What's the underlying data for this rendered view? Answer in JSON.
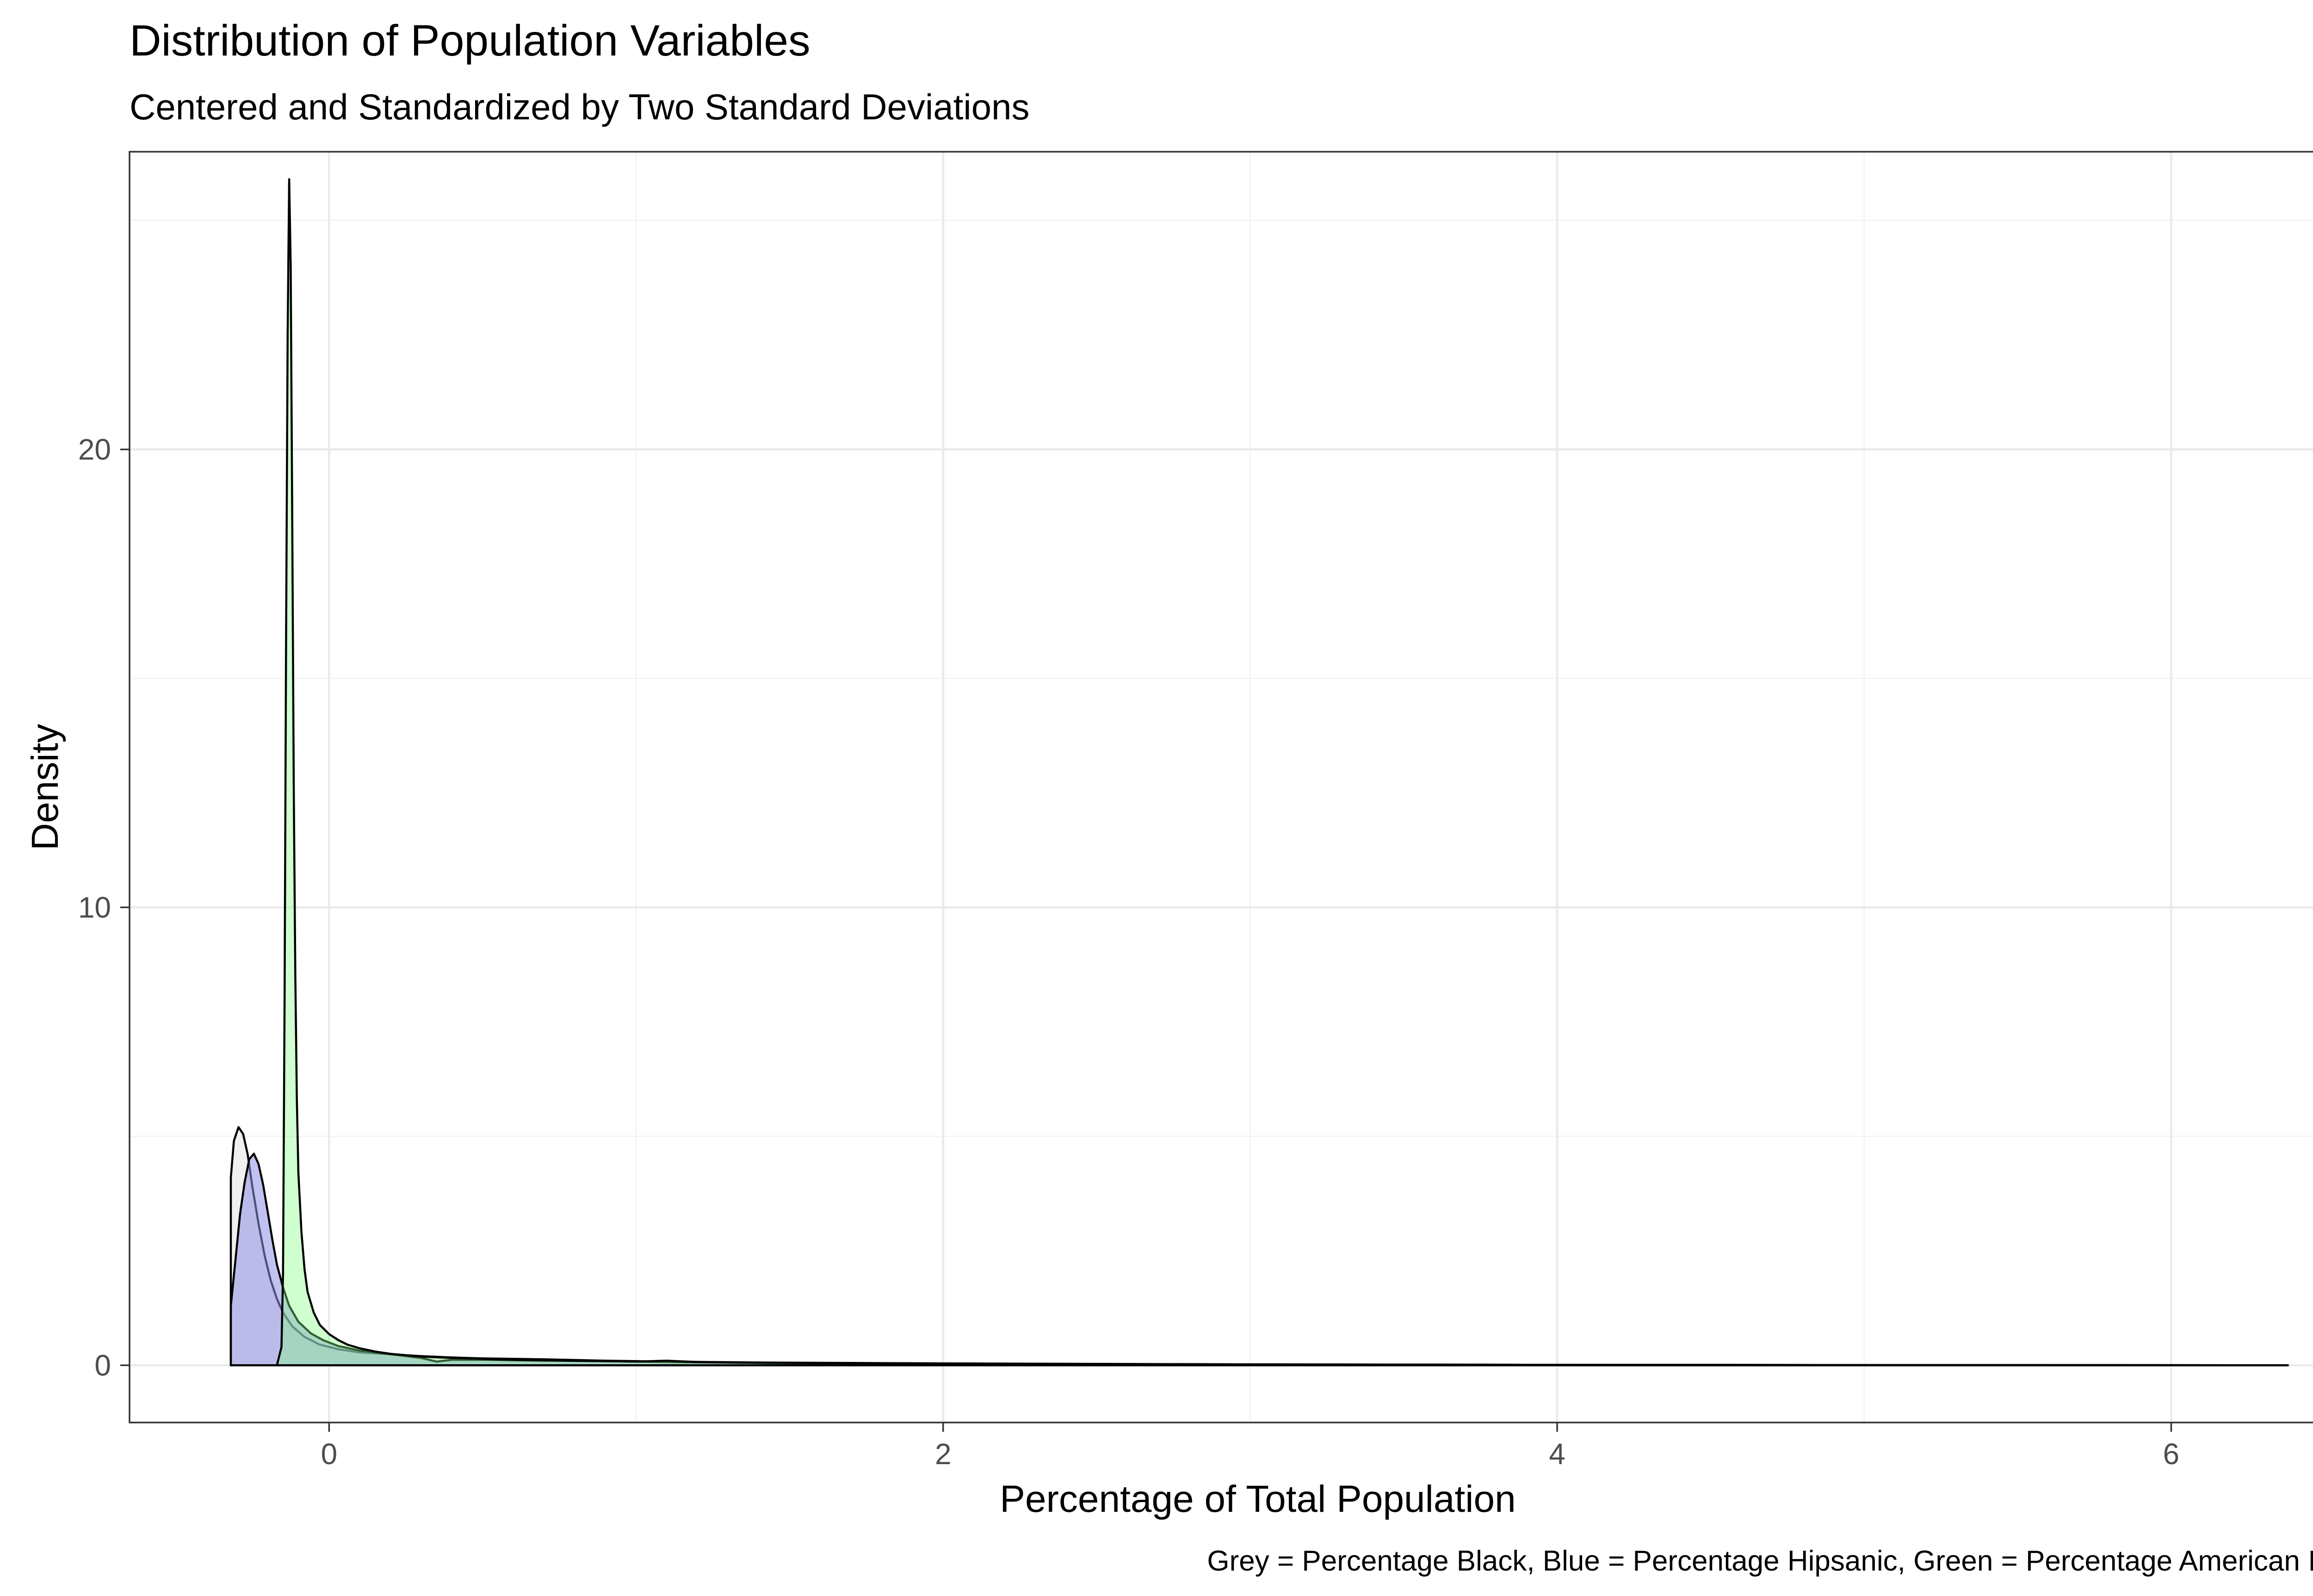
{
  "chart_data": {
    "type": "area",
    "title": "Distribution of Population Variables",
    "subtitle": "Centered and Standardized by Two Standard Deviations",
    "xlabel": "Percentage of Total Population",
    "ylabel": "Density",
    "caption": "Grey = Percentage Black, Blue = Percentage Hipsanic, Green = Percentage American Indian",
    "xlim": [
      -0.65,
      6.7
    ],
    "ylim": [
      -1.25,
      26.5
    ],
    "x_ticks": [
      0,
      2,
      4,
      6
    ],
    "y_ticks": [
      0,
      10,
      20
    ],
    "grid": true,
    "legend": "none",
    "series": [
      {
        "fill": "#EBEBEB",
        "fill_opacity": 0.75,
        "points": [
          [
            -0.32,
            0
          ],
          [
            -0.32,
            4.1
          ],
          [
            -0.31,
            4.9
          ],
          [
            -0.295,
            5.2
          ],
          [
            -0.28,
            5.05
          ],
          [
            -0.265,
            4.6
          ],
          [
            -0.25,
            3.9
          ],
          [
            -0.23,
            3.1
          ],
          [
            -0.21,
            2.4
          ],
          [
            -0.19,
            1.85
          ],
          [
            -0.17,
            1.45
          ],
          [
            -0.15,
            1.15
          ],
          [
            -0.12,
            0.85
          ],
          [
            -0.08,
            0.62
          ],
          [
            -0.03,
            0.45
          ],
          [
            0.03,
            0.35
          ],
          [
            0.1,
            0.28
          ],
          [
            0.2,
            0.24
          ],
          [
            0.3,
            0.2
          ],
          [
            0.4,
            0.17
          ],
          [
            0.5,
            0.15
          ],
          [
            0.7,
            0.13
          ],
          [
            0.9,
            0.1
          ],
          [
            1.1,
            0.08
          ],
          [
            1.4,
            0.06
          ],
          [
            1.7,
            0.05
          ],
          [
            2.0,
            0.04
          ],
          [
            2.5,
            0.03
          ],
          [
            3.0,
            0.02
          ],
          [
            4.0,
            0.01
          ],
          [
            5.0,
            0.005
          ],
          [
            6.0,
            0.002
          ],
          [
            6.38,
            0.0
          ]
        ]
      },
      {
        "fill": "#8F8FE6",
        "fill_opacity": 0.55,
        "points": [
          [
            -0.32,
            0
          ],
          [
            -0.32,
            1.3
          ],
          [
            -0.305,
            2.3
          ],
          [
            -0.29,
            3.3
          ],
          [
            -0.275,
            4.0
          ],
          [
            -0.26,
            4.5
          ],
          [
            -0.245,
            4.62
          ],
          [
            -0.23,
            4.4
          ],
          [
            -0.215,
            3.95
          ],
          [
            -0.2,
            3.35
          ],
          [
            -0.185,
            2.75
          ],
          [
            -0.17,
            2.2
          ],
          [
            -0.15,
            1.7
          ],
          [
            -0.13,
            1.3
          ],
          [
            -0.1,
            0.95
          ],
          [
            -0.06,
            0.7
          ],
          [
            -0.02,
            0.55
          ],
          [
            0.03,
            0.42
          ],
          [
            0.1,
            0.32
          ],
          [
            0.2,
            0.24
          ],
          [
            0.3,
            0.16
          ],
          [
            0.35,
            0.08
          ],
          [
            0.4,
            0.12
          ],
          [
            0.5,
            0.12
          ],
          [
            0.7,
            0.1
          ],
          [
            0.9,
            0.09
          ],
          [
            1.1,
            0.07
          ],
          [
            1.4,
            0.05
          ],
          [
            1.8,
            0.04
          ],
          [
            2.2,
            0.03
          ],
          [
            3.0,
            0.02
          ],
          [
            4.0,
            0.01
          ],
          [
            5.0,
            0.005
          ],
          [
            6.0,
            0.002
          ],
          [
            6.38,
            0.0
          ]
        ]
      },
      {
        "fill": "#80FF80",
        "fill_opacity": 0.38,
        "points": [
          [
            -0.32,
            0
          ],
          [
            -0.17,
            0
          ],
          [
            -0.155,
            0.4
          ],
          [
            -0.15,
            2.0
          ],
          [
            -0.145,
            8.0
          ],
          [
            -0.14,
            16.0
          ],
          [
            -0.135,
            22.5
          ],
          [
            -0.13,
            25.9
          ],
          [
            -0.125,
            24.0
          ],
          [
            -0.12,
            18.5
          ],
          [
            -0.115,
            12.5
          ],
          [
            -0.11,
            8.5
          ],
          [
            -0.105,
            5.8
          ],
          [
            -0.1,
            4.2
          ],
          [
            -0.09,
            2.9
          ],
          [
            -0.08,
            2.1
          ],
          [
            -0.07,
            1.6
          ],
          [
            -0.05,
            1.15
          ],
          [
            -0.03,
            0.88
          ],
          [
            0.0,
            0.68
          ],
          [
            0.03,
            0.55
          ],
          [
            0.06,
            0.45
          ],
          [
            0.1,
            0.37
          ],
          [
            0.15,
            0.3
          ],
          [
            0.2,
            0.25
          ],
          [
            0.3,
            0.19
          ],
          [
            0.4,
            0.16
          ],
          [
            0.6,
            0.12
          ],
          [
            0.8,
            0.1
          ],
          [
            1.0,
            0.08
          ],
          [
            1.1,
            0.1
          ],
          [
            1.2,
            0.07
          ],
          [
            1.5,
            0.05
          ],
          [
            2.0,
            0.04
          ],
          [
            2.5,
            0.02
          ],
          [
            3.0,
            0.015
          ],
          [
            4.0,
            0.01
          ],
          [
            5.0,
            0.005
          ],
          [
            6.0,
            0.002
          ],
          [
            6.38,
            0.0
          ]
        ]
      }
    ]
  }
}
